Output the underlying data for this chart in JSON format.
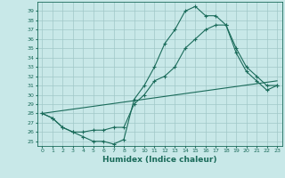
{
  "xlabel": "Humidex (Indice chaleur)",
  "background_color": "#c8e8e8",
  "grid_color": "#a0c8c8",
  "line_color": "#1a6b5a",
  "x_ticks": [
    0,
    1,
    2,
    3,
    4,
    5,
    6,
    7,
    8,
    9,
    10,
    11,
    12,
    13,
    14,
    15,
    16,
    17,
    18,
    19,
    20,
    21,
    22,
    23
  ],
  "ylim": [
    24.5,
    40.0
  ],
  "xlim": [
    -0.5,
    23.5
  ],
  "yticks": [
    25,
    26,
    27,
    28,
    29,
    30,
    31,
    32,
    33,
    34,
    35,
    36,
    37,
    38,
    39
  ],
  "series1_x": [
    0,
    1,
    2,
    3,
    4,
    5,
    6,
    7,
    8,
    9,
    10,
    11,
    12,
    13,
    14,
    15,
    16,
    17,
    18,
    19,
    20,
    21,
    22,
    23
  ],
  "series1_y": [
    28.0,
    27.5,
    26.5,
    26.0,
    25.5,
    25.0,
    25.0,
    24.7,
    25.2,
    29.5,
    31.0,
    33.0,
    35.5,
    37.0,
    39.0,
    39.5,
    38.5,
    38.5,
    37.5,
    35.0,
    33.0,
    32.0,
    31.0,
    31.0
  ],
  "series2_x": [
    0,
    1,
    2,
    3,
    4,
    5,
    6,
    7,
    8,
    9,
    10,
    11,
    12,
    13,
    14,
    15,
    16,
    17,
    18,
    19,
    20,
    21,
    22,
    23
  ],
  "series2_y": [
    28.0,
    27.5,
    26.5,
    26.0,
    26.0,
    26.2,
    26.2,
    26.5,
    26.5,
    29.0,
    30.0,
    31.5,
    32.0,
    33.0,
    35.0,
    36.0,
    37.0,
    37.5,
    37.5,
    34.5,
    32.5,
    31.5,
    30.5,
    31.0
  ],
  "series3_x": [
    0,
    23
  ],
  "series3_y": [
    28.0,
    31.5
  ]
}
